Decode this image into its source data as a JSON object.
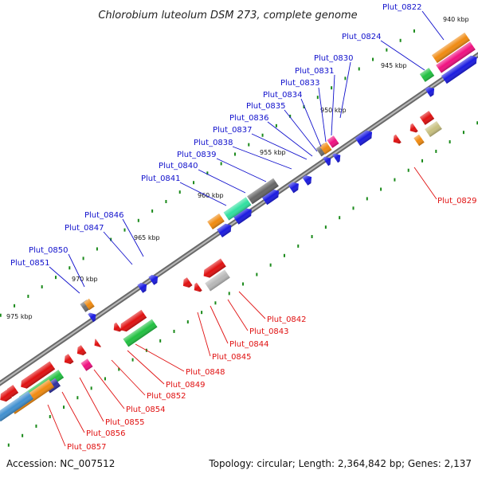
{
  "title": "Chlorobium luteolum DSM 273, complete genome",
  "footer": {
    "accession": "Accession: NC_007512",
    "summary": "Topology: circular; Length: 2,364,842 bp; Genes: 2,137"
  },
  "colors": {
    "forward_label": "#1010cc",
    "reverse_label": "#e01010",
    "backbone": "#8a8a8a",
    "tick": "#1a8a1a"
  },
  "kbp_labels": [
    "940 kbp",
    "945 kbp",
    "950 kbp",
    "955 kbp",
    "960 kbp",
    "965 kbp",
    "970 kbp",
    "975 kbp"
  ],
  "forward_genes": [
    "Plut_0822",
    "Plut_0824",
    "Plut_0830",
    "Plut_0831",
    "Plut_0833",
    "Plut_0834",
    "Plut_0835",
    "Plut_0836",
    "Plut_0837",
    "Plut_0838",
    "Plut_0839",
    "Plut_0840",
    "Plut_0841",
    "Plut_0846",
    "Plut_0847",
    "Plut_0850",
    "Plut_0851"
  ],
  "reverse_genes": [
    "Plut_0829",
    "Plut_0842",
    "Plut_0843",
    "Plut_0844",
    "Plut_0845",
    "Plut_0848",
    "Plut_0849",
    "Plut_0852",
    "Plut_0854",
    "Plut_0855",
    "Plut_0856",
    "Plut_0857"
  ]
}
